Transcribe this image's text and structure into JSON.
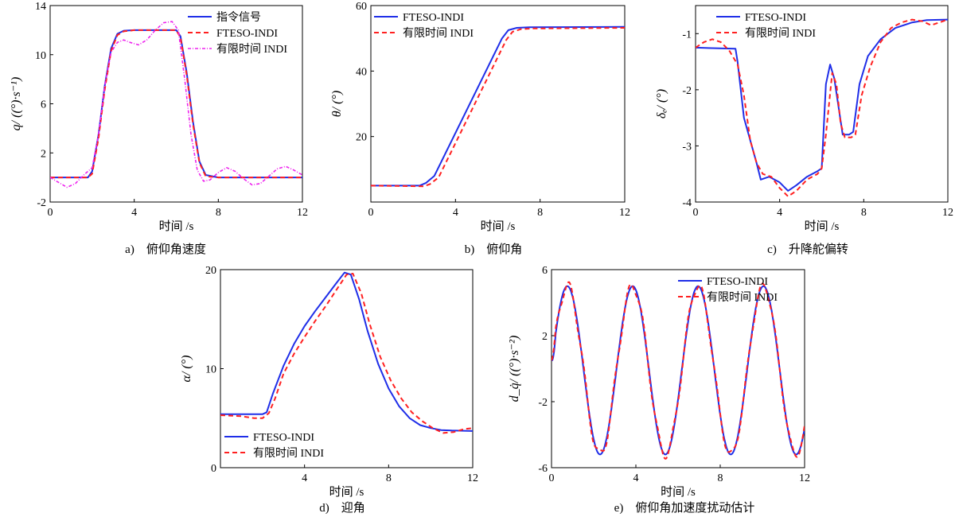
{
  "chart_data": [
    {
      "type": "line",
      "id": "a",
      "caption": "a)　俯仰角速度",
      "xlabel": "时间 /s",
      "ylabel": "q/ ((°)·s⁻¹)",
      "xlim": [
        0,
        12
      ],
      "ylim": [
        -2,
        14
      ],
      "xticks": [
        0,
        4,
        8,
        12
      ],
      "yticks": [
        -2,
        2,
        6,
        10,
        14
      ],
      "legend_position": "top-right",
      "series": [
        {
          "name": "指令信号",
          "color": "#1f2ee8",
          "dash": "",
          "width": 2,
          "x": [
            0,
            1.8,
            2.0,
            2.3,
            2.6,
            2.9,
            3.2,
            3.5,
            4.0,
            5,
            6.0,
            6.2,
            6.5,
            6.8,
            7.1,
            7.4,
            8,
            12
          ],
          "y": [
            0,
            0,
            0.5,
            3.5,
            7.5,
            10.5,
            11.7,
            11.95,
            12,
            12,
            12,
            11.5,
            8.5,
            4.5,
            1.3,
            0.2,
            0,
            0
          ]
        },
        {
          "name": "FTESO-INDI",
          "color": "#ff2020",
          "dash": "6,4",
          "width": 2,
          "x": [
            0,
            1.8,
            2.0,
            2.3,
            2.6,
            2.9,
            3.2,
            3.5,
            4.0,
            5,
            6.0,
            6.2,
            6.5,
            6.8,
            7.1,
            7.4,
            8,
            12
          ],
          "y": [
            0,
            0,
            0.3,
            3.2,
            7.2,
            10.3,
            11.6,
            11.9,
            12,
            12,
            12,
            11.4,
            8.3,
            4.3,
            1.2,
            0.1,
            0,
            0
          ]
        },
        {
          "name": "有限时间 INDI",
          "color": "#ee22ee",
          "dash": "4,2,1,2",
          "width": 1.6,
          "x": [
            0,
            0.4,
            0.8,
            1.2,
            1.6,
            2.0,
            2.3,
            2.6,
            2.9,
            3.2,
            3.5,
            3.8,
            4.2,
            4.6,
            5.0,
            5.4,
            5.8,
            6.1,
            6.4,
            6.7,
            7.0,
            7.3,
            7.6,
            8.0,
            8.4,
            8.8,
            9.2,
            9.6,
            10.0,
            10.4,
            10.8,
            11.2,
            11.6,
            12
          ],
          "y": [
            0,
            -0.4,
            -0.8,
            -0.5,
            0.2,
            0.8,
            3.5,
            7.5,
            10.2,
            11.0,
            11.2,
            11.0,
            10.8,
            11.2,
            12.0,
            12.6,
            12.7,
            12.0,
            8.0,
            3.5,
            0.6,
            -0.3,
            -0.2,
            0.4,
            0.8,
            0.5,
            -0.1,
            -0.6,
            -0.5,
            0.1,
            0.7,
            0.9,
            0.6,
            0.2
          ]
        }
      ]
    },
    {
      "type": "line",
      "id": "b",
      "caption": "b)　俯仰角",
      "xlabel": "时间 /s",
      "ylabel": "θ/ (°)",
      "xlim": [
        0,
        12
      ],
      "ylim": [
        0,
        60
      ],
      "xticks": [
        0,
        4,
        8,
        12
      ],
      "yticks": [
        20,
        40,
        60
      ],
      "xticklabels": [
        "0",
        "4",
        "8",
        "12"
      ],
      "legend_position": "top-left",
      "series": [
        {
          "name": "FTESO-INDI",
          "color": "#1f2ee8",
          "dash": "",
          "width": 2,
          "x": [
            0,
            2.3,
            2.6,
            3.0,
            6.2,
            6.5,
            6.9,
            7.5,
            12
          ],
          "y": [
            5,
            5,
            5.8,
            8,
            50,
            52.5,
            53.2,
            53.4,
            53.5
          ]
        },
        {
          "name": "有限时间 INDI",
          "color": "#ff2020",
          "dash": "6,4",
          "width": 2,
          "x": [
            0,
            2.5,
            2.8,
            3.2,
            6.4,
            6.7,
            7.1,
            7.7,
            12
          ],
          "y": [
            5,
            4.8,
            5.5,
            7.5,
            49.5,
            52,
            52.8,
            53,
            53.2
          ]
        }
      ]
    },
    {
      "type": "line",
      "id": "c",
      "caption": "c)　升降舵偏转",
      "xlabel": "时间 /s",
      "ylabel": "δₑ/ (°)",
      "xlim": [
        0,
        12
      ],
      "ylim": [
        -4,
        -0.5
      ],
      "xticks": [
        0,
        4,
        8,
        12
      ],
      "yticks": [
        -4,
        -3,
        -2,
        -1
      ],
      "legend_position": "top-right",
      "series": [
        {
          "name": "FTESO-INDI",
          "color": "#1f2ee8",
          "dash": "",
          "width": 2,
          "x": [
            0,
            1.9,
            2.0,
            2.3,
            2.6,
            2.9,
            3.1,
            3.5,
            4.0,
            4.4,
            4.8,
            5.3,
            5.8,
            6.0,
            6.2,
            6.4,
            6.6,
            6.8,
            7.0,
            7.3,
            7.5,
            7.8,
            8.2,
            8.8,
            9.5,
            10.3,
            11,
            12
          ],
          "y": [
            -1.25,
            -1.27,
            -1.5,
            -2.5,
            -2.9,
            -3.3,
            -3.6,
            -3.55,
            -3.65,
            -3.8,
            -3.7,
            -3.55,
            -3.45,
            -3.4,
            -1.9,
            -1.55,
            -1.8,
            -2.3,
            -2.8,
            -2.8,
            -2.75,
            -1.9,
            -1.4,
            -1.1,
            -0.9,
            -0.8,
            -0.76,
            -0.75
          ]
        },
        {
          "name": "有限时间 INDI",
          "color": "#ff2020",
          "dash": "6,4",
          "width": 2,
          "x": [
            0,
            0.4,
            0.8,
            1.2,
            1.6,
            2.0,
            2.3,
            2.6,
            2.9,
            3.2,
            3.6,
            4.0,
            4.4,
            4.8,
            5.3,
            5.8,
            6.0,
            6.2,
            6.5,
            6.7,
            6.9,
            7.1,
            7.4,
            7.6,
            7.9,
            8.3,
            8.8,
            9.3,
            9.8,
            10.3,
            10.8,
            11.2,
            11.6,
            12
          ],
          "y": [
            -1.25,
            -1.15,
            -1.1,
            -1.15,
            -1.3,
            -1.55,
            -2.1,
            -2.9,
            -3.3,
            -3.5,
            -3.55,
            -3.75,
            -3.9,
            -3.8,
            -3.6,
            -3.5,
            -3.4,
            -2.8,
            -1.7,
            -1.9,
            -2.6,
            -2.85,
            -2.85,
            -2.8,
            -2.1,
            -1.6,
            -1.15,
            -0.9,
            -0.8,
            -0.75,
            -0.78,
            -0.85,
            -0.8,
            -0.75
          ]
        }
      ]
    },
    {
      "type": "line",
      "id": "d",
      "caption": "d)　迎角",
      "xlabel": "时间 /s",
      "ylabel": "α/ (°)",
      "xlim": [
        0,
        12
      ],
      "ylim": [
        0,
        20
      ],
      "xticks": [
        4,
        8,
        12
      ],
      "yticks": [
        0,
        10,
        20
      ],
      "legend_position": "bottom-left",
      "series": [
        {
          "name": "FTESO-INDI",
          "color": "#1f2ee8",
          "dash": "",
          "width": 2,
          "x": [
            0,
            2.0,
            2.2,
            2.5,
            3.0,
            3.5,
            4.0,
            4.5,
            5.0,
            5.5,
            5.9,
            6.2,
            6.6,
            7.0,
            7.5,
            8.0,
            8.5,
            9.0,
            9.5,
            10.0,
            10.5,
            11,
            12
          ],
          "y": [
            5.4,
            5.4,
            5.6,
            7.5,
            10.3,
            12.5,
            14.3,
            15.8,
            17.2,
            18.6,
            19.7,
            19.5,
            17.0,
            13.8,
            10.5,
            8.0,
            6.2,
            5.0,
            4.3,
            4.0,
            3.8,
            3.75,
            3.7
          ]
        },
        {
          "name": "有限时间 INDI",
          "color": "#ff2020",
          "dash": "6,4",
          "width": 2,
          "x": [
            0,
            1.0,
            1.6,
            2.0,
            2.3,
            2.6,
            3.0,
            3.5,
            4.0,
            4.5,
            5.0,
            5.5,
            6.0,
            6.3,
            6.7,
            7.1,
            7.6,
            8.1,
            8.6,
            9.1,
            9.6,
            10.1,
            10.6,
            11.1,
            11.6,
            12
          ],
          "y": [
            5.3,
            5.2,
            5.0,
            5.0,
            5.5,
            7.0,
            9.5,
            11.5,
            13.2,
            14.8,
            16.3,
            17.9,
            19.5,
            19.6,
            17.6,
            14.5,
            11.2,
            8.8,
            7.0,
            5.6,
            4.7,
            4.0,
            3.5,
            3.6,
            3.9,
            4.0
          ]
        }
      ]
    },
    {
      "type": "line",
      "id": "e",
      "caption": "e)　俯仰角加速度扰动估计",
      "xlabel": "时间 /s",
      "ylabel": "d_q̇/ ((°)·s⁻²)",
      "xlim": [
        0,
        12
      ],
      "ylim": [
        -6,
        6
      ],
      "xticks": [
        0,
        4,
        8,
        12
      ],
      "yticks": [
        -6,
        -2,
        2,
        6
      ],
      "legend_position": "top-right",
      "series": [
        {
          "name": "FTESO-INDI",
          "color": "#1f2ee8",
          "dash": "",
          "width": 2
        },
        {
          "name": "有限时间 INDI",
          "color": "#ff2020",
          "dash": "6,4",
          "width": 2
        }
      ],
      "signal": {
        "offset": -0.1,
        "amplitude": 5.1,
        "period": 3.1,
        "phase_peak": 0.75,
        "x_end": 12.0
      }
    }
  ]
}
